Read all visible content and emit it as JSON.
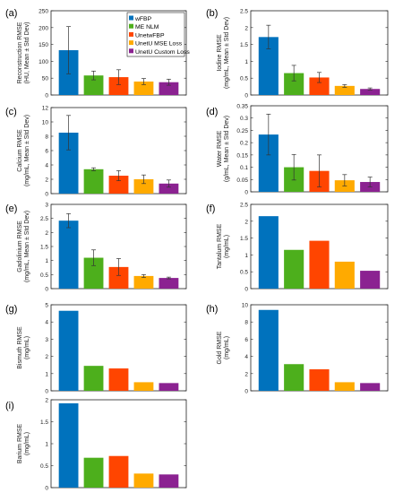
{
  "legend": [
    "wFBP",
    "ME NLM",
    "UnetwFBP",
    "UnetU MSE Loss",
    "UnetU Custom Loss"
  ],
  "colors": [
    "#0072bd",
    "#4daf1c",
    "#ff4500",
    "#ffaa00",
    "#8b2291"
  ],
  "chart_data": [
    {
      "type": "bar",
      "panel_label": "(a)",
      "ylabel": [
        "Reconstruction RMSE",
        "(HU, Mean ± Std Dev)"
      ],
      "categories": [
        "wFBP",
        "ME NLM",
        "UnetwFBP",
        "UnetU MSE Loss",
        "UnetU Custom Loss"
      ],
      "values": [
        133,
        58,
        53,
        40,
        38
      ],
      "errors": [
        70,
        13,
        22,
        9,
        9
      ],
      "ylim": [
        0,
        250
      ],
      "yticks": [
        0,
        50,
        100,
        150,
        200,
        250
      ],
      "legend": "top-right"
    },
    {
      "type": "bar",
      "panel_label": "(b)",
      "ylabel": [
        "Iodine RMSE",
        "(mg/mL, Mean ± Std Dev)"
      ],
      "categories": [
        "wFBP",
        "ME NLM",
        "UnetwFBP",
        "UnetU MSE Loss",
        "UnetU Custom Loss"
      ],
      "values": [
        1.72,
        0.65,
        0.52,
        0.27,
        0.18
      ],
      "errors": [
        0.35,
        0.23,
        0.15,
        0.04,
        0.03
      ],
      "ylim": [
        0,
        2.5
      ],
      "yticks": [
        0,
        0.5,
        1,
        1.5,
        2,
        2.5
      ]
    },
    {
      "type": "bar",
      "panel_label": "(c)",
      "ylabel": [
        "Calcium RMSE",
        "(mg/mL, Mean ± Std Dev)"
      ],
      "categories": [
        "wFBP",
        "ME NLM",
        "UnetwFBP",
        "UnetU MSE Loss",
        "UnetU Custom Loss"
      ],
      "values": [
        8.5,
        3.4,
        2.5,
        2.0,
        1.4
      ],
      "errors": [
        2.4,
        0.2,
        0.7,
        0.6,
        0.5
      ],
      "ylim": [
        0,
        12
      ],
      "yticks": [
        0,
        2,
        4,
        6,
        8,
        10,
        12
      ]
    },
    {
      "type": "bar",
      "panel_label": "(d)",
      "ylabel": [
        "Water RMSE",
        "(g/mL, Mean ± Std Dev)"
      ],
      "categories": [
        "wFBP",
        "ME NLM",
        "UnetwFBP",
        "UnetU MSE Loss",
        "UnetU Custom Loss"
      ],
      "values": [
        0.233,
        0.1,
        0.085,
        0.047,
        0.04
      ],
      "errors": [
        0.083,
        0.052,
        0.065,
        0.023,
        0.02
      ],
      "ylim": [
        0,
        0.35
      ],
      "yticks": [
        0,
        0.05,
        0.1,
        0.15,
        0.2,
        0.25,
        0.3,
        0.35
      ]
    },
    {
      "type": "bar",
      "panel_label": "(e)",
      "ylabel": [
        "Gadolinium RMSE",
        "(mg/mL, Mean ± Std Dev)"
      ],
      "categories": [
        "wFBP",
        "ME NLM",
        "UnetwFBP",
        "UnetU MSE Loss",
        "UnetU Custom Loss"
      ],
      "values": [
        2.42,
        1.1,
        0.77,
        0.45,
        0.38
      ],
      "errors": [
        0.25,
        0.28,
        0.3,
        0.05,
        0.03
      ],
      "ylim": [
        0,
        3
      ],
      "yticks": [
        0,
        0.5,
        1,
        1.5,
        2,
        2.5,
        3
      ]
    },
    {
      "type": "bar",
      "panel_label": "(f)",
      "ylabel": [
        "Tantalum RMSE",
        "(mg/mL)"
      ],
      "categories": [
        "wFBP",
        "ME NLM",
        "UnetwFBP",
        "UnetU MSE Loss",
        "UnetU Custom Loss"
      ],
      "values": [
        2.15,
        1.15,
        1.42,
        0.8,
        0.53
      ],
      "ylim": [
        0,
        2.5
      ],
      "yticks": [
        0,
        0.5,
        1,
        1.5,
        2,
        2.5
      ]
    },
    {
      "type": "bar",
      "panel_label": "(g)",
      "ylabel": [
        "Bismuth RMSE",
        "(mg/mL)"
      ],
      "categories": [
        "wFBP",
        "ME NLM",
        "UnetwFBP",
        "UnetU MSE Loss",
        "UnetU Custom Loss"
      ],
      "values": [
        4.65,
        1.45,
        1.3,
        0.5,
        0.45
      ],
      "ylim": [
        0,
        5
      ],
      "yticks": [
        0,
        1,
        2,
        3,
        4,
        5
      ]
    },
    {
      "type": "bar",
      "panel_label": "(h)",
      "ylabel": [
        "Gold RMSE",
        "(mg/mL)"
      ],
      "categories": [
        "wFBP",
        "ME NLM",
        "UnetwFBP",
        "UnetU MSE Loss",
        "UnetU Custom Loss"
      ],
      "values": [
        9.4,
        3.1,
        2.5,
        1.0,
        0.9
      ],
      "ylim": [
        0,
        10
      ],
      "yticks": [
        0,
        2,
        4,
        6,
        8,
        10
      ]
    },
    {
      "type": "bar",
      "panel_label": "(i)",
      "ylabel": [
        "Barium RMSE",
        "(mg/mL)"
      ],
      "categories": [
        "wFBP",
        "ME NLM",
        "UnetwFBP",
        "UnetU MSE Loss",
        "UnetU Custom Loss"
      ],
      "values": [
        1.92,
        0.68,
        0.72,
        0.32,
        0.3
      ],
      "ylim": [
        0,
        2
      ],
      "yticks": [
        0,
        0.5,
        1,
        1.5,
        2
      ]
    }
  ]
}
